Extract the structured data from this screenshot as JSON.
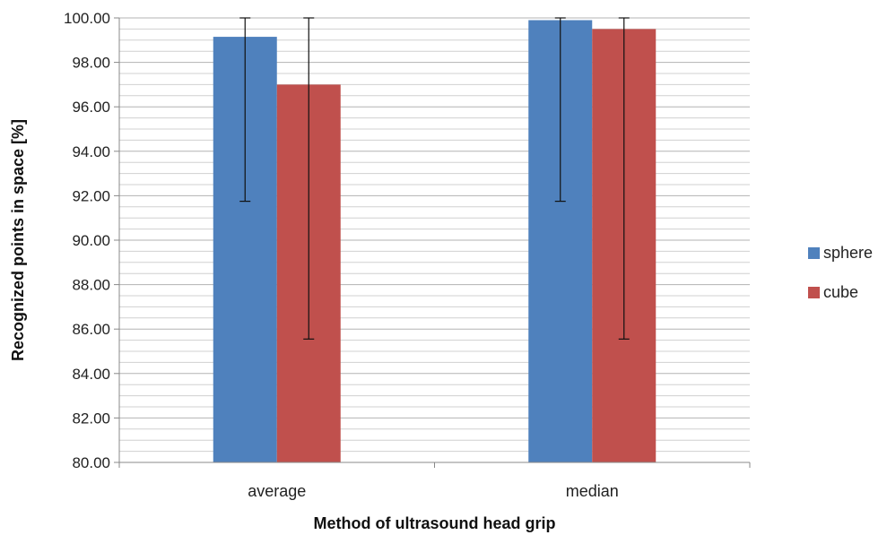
{
  "chart_data": {
    "type": "bar",
    "categories": [
      "average",
      "median"
    ],
    "series": [
      {
        "name": "sphere",
        "color": "#4F81BD",
        "values": [
          99.15,
          99.9
        ],
        "error_low": [
          91.75,
          91.75
        ],
        "error_high": [
          100.0,
          100.0
        ]
      },
      {
        "name": "cube",
        "color": "#C0504D",
        "values": [
          97.0,
          99.5
        ],
        "error_low": [
          85.55,
          85.55
        ],
        "error_high": [
          100.0,
          100.0
        ]
      }
    ],
    "xlabel": "Method of ultrasound head grip",
    "ylabel": "Recognized points in space [%]",
    "ylim": [
      80,
      100
    ],
    "yticks": [
      "80.00",
      "82.00",
      "84.00",
      "86.00",
      "88.00",
      "90.00",
      "92.00",
      "94.00",
      "96.00",
      "98.00",
      "100.00"
    ],
    "grid": true,
    "legend_position": "right"
  }
}
